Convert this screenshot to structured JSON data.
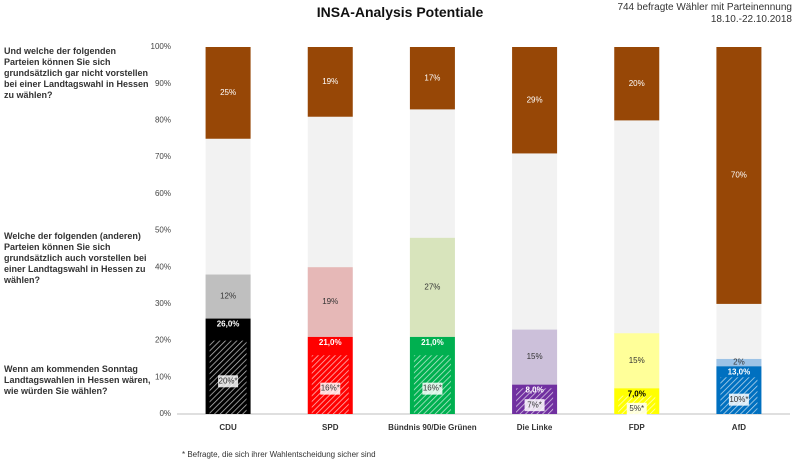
{
  "title": "INSA-Analysis Potentiale",
  "meta_line1": "744 befragte Wähler mit Parteinennung",
  "meta_line2": "18.10.-22.10.2018",
  "question_reject": "Und welche der folgenden Parteien können Sie sich grundsätzlich gar nicht vorstellen bei einer Landtagswahl in Hessen zu wählen?",
  "question_potential": "Welche der folgenden (anderen) Parteien können Sie sich grundsätzlich auch vorstellen bei einer Landtagswahl in Hessen zu wählen?",
  "question_vote": "Wenn am kommenden Sonntag Landtagswahlen in Hessen wären, wie würden Sie wählen?",
  "footnote": "* Befragte, die sich ihrer Wahlentscheidung sicher sind",
  "chart_data": {
    "type": "bar",
    "stacked": true,
    "ylim": [
      0,
      100
    ],
    "yticks": [
      "0%",
      "10%",
      "20%",
      "30%",
      "40%",
      "50%",
      "60%",
      "70%",
      "80%",
      "90%",
      "100%"
    ],
    "categories": [
      "CDU",
      "SPD",
      "Bündnis 90/Die Grünen",
      "Die Linke",
      "FDP",
      "AfD"
    ],
    "vote": [
      26,
      21,
      21,
      8,
      7,
      13
    ],
    "vote_labels": [
      "26,0%",
      "21,0%",
      "21,0%",
      "8,0%",
      "7,0%",
      "13,0%"
    ],
    "sure": [
      20,
      16,
      16,
      7,
      5,
      10
    ],
    "sure_labels": [
      "20%*",
      "16%*",
      "16%*",
      "7%*",
      "5%*",
      "10%*"
    ],
    "potential": [
      12,
      19,
      27,
      15,
      15,
      2
    ],
    "potential_labels": [
      "12%",
      "19%",
      "27%",
      "15%",
      "15%",
      "2%"
    ],
    "reject": [
      25,
      19,
      17,
      29,
      20,
      70
    ],
    "reject_labels": [
      "25%",
      "19%",
      "17%",
      "29%",
      "20%",
      "70%"
    ],
    "colors": {
      "vote": [
        "#000000",
        "#ff0000",
        "#00b050",
        "#7030a0",
        "#ffff00",
        "#0070c0"
      ],
      "potential": [
        "#bfbfbf",
        "#e6b8b7",
        "#d8e4bc",
        "#ccc0da",
        "#ffff99",
        "#9dc3e6"
      ],
      "reject": "#974706",
      "rest": "#f2f2f2"
    },
    "vote_text_colors": [
      "#ffffff",
      "#ffffff",
      "#ffffff",
      "#ffffff",
      "#000000",
      "#ffffff"
    ]
  }
}
